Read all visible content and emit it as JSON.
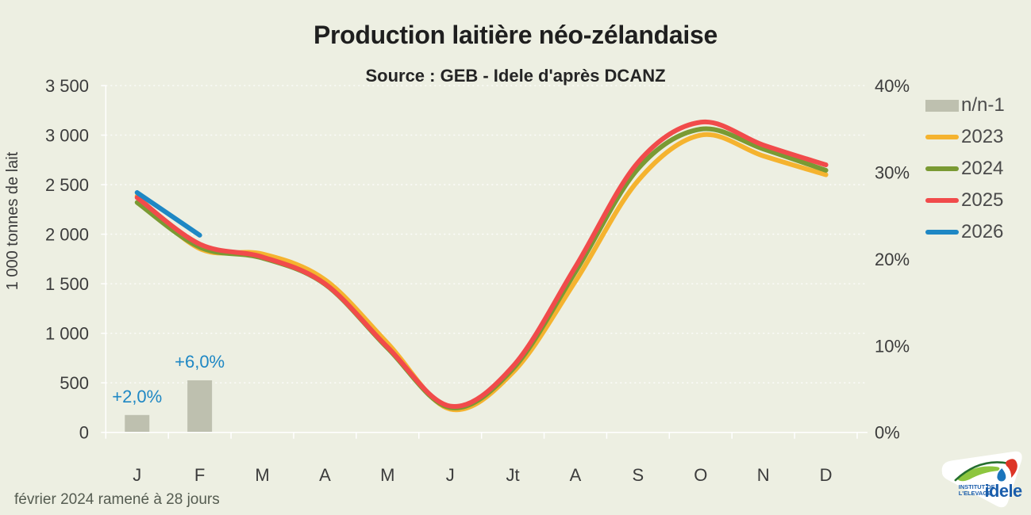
{
  "header": {
    "title": "Production laitière néo-zélandaise",
    "subtitle": "Source : GEB - Idele d'après DCANZ"
  },
  "footnote": "février 2024 ramené à 28 jours",
  "colors": {
    "background": "#edefe2",
    "grid": "#ffffff",
    "axis": "#ffffff",
    "tick_text": "#3c3c3c",
    "legend_text": "#4b4b4b",
    "bar": "#bec0af",
    "bar_label": "#1e87c4"
  },
  "left_axis": {
    "title": "1 000 tonnes de lait",
    "tick_labels": [
      "3 500",
      "3 000",
      "2 500",
      "2 000",
      "1 500",
      "1 000",
      "500",
      "0"
    ],
    "min": 0,
    "max": 3500,
    "step": 500
  },
  "right_axis": {
    "tick_labels": [
      "40%",
      "30%",
      "20%",
      "10%",
      "0%"
    ],
    "min": 0,
    "max": 40,
    "step": 10
  },
  "x_axis": {
    "labels": [
      "J",
      "F",
      "M",
      "A",
      "M",
      "J",
      "Jt",
      "A",
      "S",
      "O",
      "N",
      "D"
    ]
  },
  "legend": {
    "items": [
      {
        "label": "n/n-1",
        "swatch": "box",
        "color": "#bec0af"
      },
      {
        "label": "2023",
        "swatch": "line",
        "color": "#f5b32f"
      },
      {
        "label": "2024",
        "swatch": "line",
        "color": "#7a9a33"
      },
      {
        "label": "2025",
        "swatch": "line",
        "color": "#f14b4b"
      },
      {
        "label": "2026",
        "swatch": "line",
        "color": "#1e87c4"
      }
    ]
  },
  "chart_data": {
    "type": "line",
    "title": "Production laitière néo-zélandaise",
    "subtitle": "Source : GEB - Idele d'après DCANZ",
    "categories": [
      "J",
      "F",
      "M",
      "A",
      "M",
      "J",
      "Jt",
      "A",
      "S",
      "O",
      "N",
      "D"
    ],
    "ylabel_left": "1 000 tonnes de lait",
    "left_ylim": [
      0,
      3500
    ],
    "right_ylim": [
      0,
      40
    ],
    "grid": "horizontal-dashed-white",
    "legend_position": "right",
    "series": [
      {
        "name": "2023",
        "color": "#f5b32f",
        "values": [
          2385,
          1855,
          1800,
          1540,
          900,
          235,
          605,
          1525,
          2540,
          3000,
          2790,
          2600
        ]
      },
      {
        "name": "2024",
        "color": "#7a9a33",
        "values": [
          2320,
          1870,
          1760,
          1495,
          850,
          250,
          640,
          1620,
          2660,
          3060,
          2860,
          2645
        ]
      },
      {
        "name": "2025",
        "color": "#f14b4b",
        "values": [
          2370,
          1900,
          1770,
          1500,
          860,
          265,
          665,
          1670,
          2725,
          3130,
          2900,
          2700
        ]
      },
      {
        "name": "2026",
        "color": "#1e87c4",
        "values": [
          2420,
          1990,
          null,
          null,
          null,
          null,
          null,
          null,
          null,
          null,
          null,
          null
        ]
      }
    ],
    "bars": {
      "name": "n/n-1",
      "axis": "right",
      "color": "#bec0af",
      "values": [
        2.0,
        6.0,
        null,
        null,
        null,
        null,
        null,
        null,
        null,
        null,
        null,
        null
      ],
      "labels": [
        "+2,0%",
        "+6,0%"
      ]
    }
  },
  "logo": {
    "line1": "INSTITUT DE",
    "line2": "L'ELEVAGE",
    "brand": "idele"
  }
}
